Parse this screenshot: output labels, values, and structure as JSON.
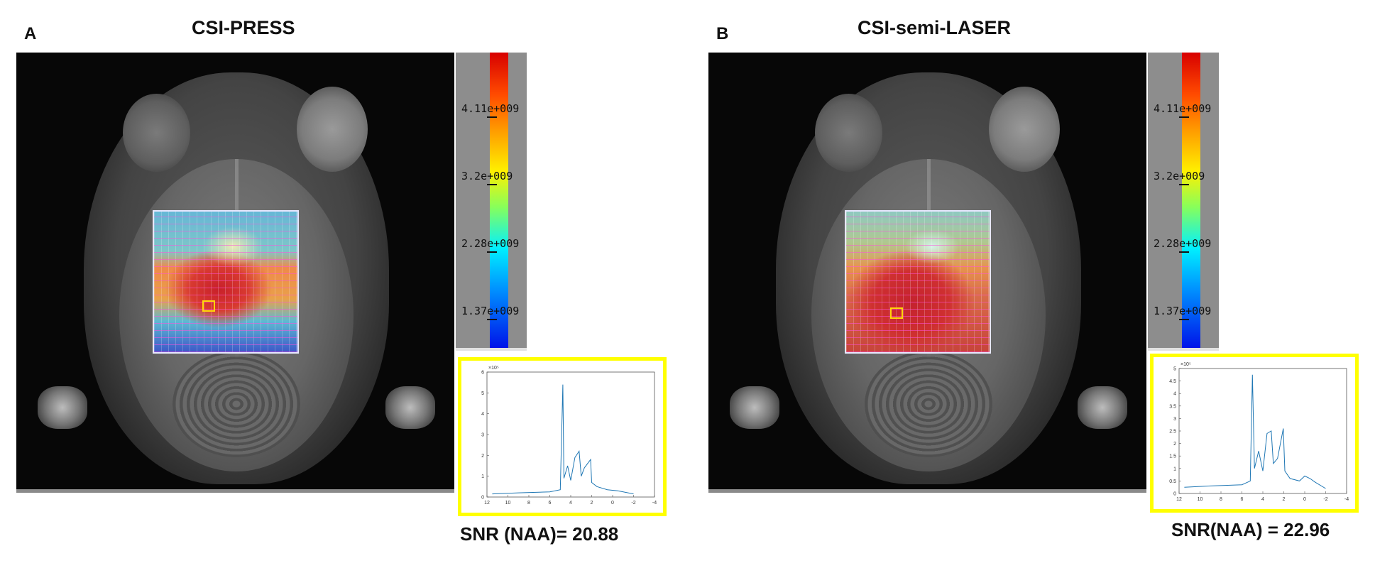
{
  "figure": {
    "panels": [
      {
        "letter": "A",
        "title": "CSI-PRESS",
        "snr_text": "SNR (NAA)= 20.88",
        "colorbar_ticks": [
          "4.11e+009",
          "3.2e+009",
          "2.28e+009",
          "1.37e+009"
        ],
        "spectrum": {
          "exponent_label": "×10⁵",
          "y_ticks": [
            "6",
            "5",
            "4",
            "3",
            "2",
            "1",
            "0"
          ],
          "x_ticks": [
            "12",
            "10",
            "8",
            "6",
            "4",
            "2",
            "0",
            "-2",
            "-4"
          ]
        }
      },
      {
        "letter": "B",
        "title": "CSI-semi-LASER",
        "snr_text": "SNR(NAA) = 22.96",
        "colorbar_ticks": [
          "4.11e+009",
          "3.2e+009",
          "2.28e+009",
          "1.37e+009"
        ],
        "spectrum": {
          "exponent_label": "×10⁵",
          "y_ticks": [
            "5",
            "4.5",
            "4",
            "3.5",
            "3",
            "2.5",
            "2",
            "1.5",
            "1",
            "0.5",
            "0"
          ],
          "x_ticks": [
            "12",
            "10",
            "8",
            "6",
            "4",
            "2",
            "0",
            "-2",
            "-4"
          ]
        }
      }
    ],
    "colors": {
      "highlight_box": "#ffff00",
      "voxel_marker": "#ffd60a",
      "spectrum_line": "#1f77b4"
    }
  },
  "chart_data": [
    {
      "type": "line",
      "title": "",
      "xlabel": "",
      "ylabel": "",
      "xlim": [
        12,
        -4
      ],
      "ylim": [
        0,
        6
      ],
      "x": [
        11.5,
        9,
        6,
        5,
        4.75,
        4.65,
        4.3,
        4.0,
        3.6,
        3.2,
        3.0,
        2.7,
        2.1,
        2.0,
        1.5,
        0.5,
        -0.5,
        -2
      ],
      "y": [
        0.15,
        0.2,
        0.25,
        0.35,
        5.4,
        0.9,
        1.5,
        0.8,
        1.9,
        2.2,
        1.0,
        1.4,
        1.8,
        0.7,
        0.5,
        0.35,
        0.3,
        0.15
      ]
    },
    {
      "type": "line",
      "title": "",
      "xlabel": "",
      "ylabel": "",
      "xlim": [
        12,
        -4
      ],
      "ylim": [
        0,
        5
      ],
      "x": [
        11.5,
        9,
        6,
        5.2,
        5.0,
        4.8,
        4.4,
        4.0,
        3.6,
        3.2,
        3.0,
        2.6,
        2.05,
        1.9,
        1.4,
        0.5,
        0,
        -0.5,
        -1,
        -2
      ],
      "y": [
        0.25,
        0.3,
        0.35,
        0.5,
        4.75,
        1.0,
        1.7,
        0.9,
        2.4,
        2.5,
        1.2,
        1.4,
        2.6,
        0.9,
        0.6,
        0.5,
        0.7,
        0.6,
        0.45,
        0.2
      ]
    }
  ]
}
